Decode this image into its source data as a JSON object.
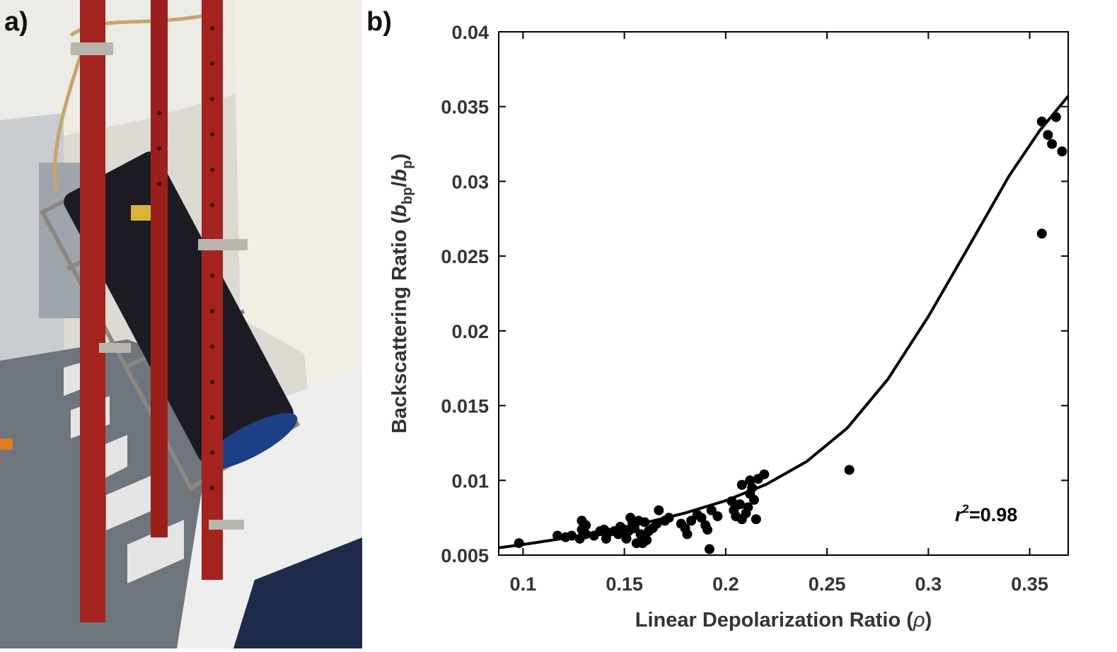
{
  "panel_labels": {
    "a": "a)",
    "b": "b)"
  },
  "photo": {
    "subject": "tilted-cylindrical-instrument-in-cage-frame",
    "colors": {
      "poles": "#a5231f",
      "instrument": "#1c1a22",
      "frame": "#8b8780",
      "deck": "#6d7278",
      "wall": "#e8e6df",
      "endcap": "#1d3f86"
    }
  },
  "chart_data": {
    "type": "scatter",
    "xlabel_main": "Linear Depolarization Ratio (",
    "xlabel_symbol": "ρ",
    "xlabel_close": ")",
    "ylabel_main": "Backscattering Ratio (",
    "ylabel_b1": "b",
    "ylabel_sub1": "bp",
    "ylabel_slash": "/",
    "ylabel_b2": "b",
    "ylabel_sub2": "p",
    "ylabel_close": ")",
    "xlim": [
      0.088,
      0.369
    ],
    "ylim": [
      0.005,
      0.04
    ],
    "xticks": [
      0.1,
      0.15,
      0.2,
      0.25,
      0.3,
      0.35
    ],
    "xtick_labels": [
      "0.1",
      "0.15",
      "0.2",
      "0.25",
      "0.3",
      "0.35"
    ],
    "yticks": [
      0.005,
      0.01,
      0.015,
      0.02,
      0.025,
      0.03,
      0.035,
      0.04
    ],
    "ytick_labels": [
      "0.005",
      "0.01",
      "0.015",
      "0.02",
      "0.025",
      "0.03",
      "0.035",
      "0.04"
    ],
    "annotation": {
      "r": "r",
      "sup": "2",
      "value": "=0.98"
    },
    "marker_color": "#000000",
    "points": [
      [
        0.098,
        0.0058
      ],
      [
        0.117,
        0.0063
      ],
      [
        0.121,
        0.0062
      ],
      [
        0.124,
        0.0063
      ],
      [
        0.128,
        0.0061
      ],
      [
        0.129,
        0.0067
      ],
      [
        0.129,
        0.0073
      ],
      [
        0.131,
        0.007
      ],
      [
        0.131,
        0.0064
      ],
      [
        0.135,
        0.0063
      ],
      [
        0.138,
        0.0066
      ],
      [
        0.14,
        0.0067
      ],
      [
        0.141,
        0.0061
      ],
      [
        0.142,
        0.0065
      ],
      [
        0.145,
        0.0066
      ],
      [
        0.147,
        0.0064
      ],
      [
        0.148,
        0.0069
      ],
      [
        0.15,
        0.0067
      ],
      [
        0.151,
        0.0061
      ],
      [
        0.152,
        0.0066
      ],
      [
        0.153,
        0.0075
      ],
      [
        0.154,
        0.0071
      ],
      [
        0.155,
        0.0068
      ],
      [
        0.156,
        0.0058
      ],
      [
        0.157,
        0.0073
      ],
      [
        0.158,
        0.0064
      ],
      [
        0.159,
        0.0058
      ],
      [
        0.16,
        0.0072
      ],
      [
        0.161,
        0.006
      ],
      [
        0.162,
        0.0066
      ],
      [
        0.164,
        0.0068
      ],
      [
        0.166,
        0.0071
      ],
      [
        0.167,
        0.008
      ],
      [
        0.17,
        0.0073
      ],
      [
        0.172,
        0.0075
      ],
      [
        0.178,
        0.0071
      ],
      [
        0.18,
        0.0068
      ],
      [
        0.181,
        0.0064
      ],
      [
        0.183,
        0.0073
      ],
      [
        0.186,
        0.0077
      ],
      [
        0.188,
        0.0075
      ],
      [
        0.19,
        0.007
      ],
      [
        0.191,
        0.0067
      ],
      [
        0.192,
        0.0054
      ],
      [
        0.193,
        0.008
      ],
      [
        0.196,
        0.0076
      ],
      [
        0.203,
        0.0086
      ],
      [
        0.204,
        0.008
      ],
      [
        0.205,
        0.0076
      ],
      [
        0.207,
        0.0084
      ],
      [
        0.208,
        0.0074
      ],
      [
        0.208,
        0.0097
      ],
      [
        0.21,
        0.0078
      ],
      [
        0.211,
        0.0082
      ],
      [
        0.212,
        0.0091
      ],
      [
        0.212,
        0.01
      ],
      [
        0.213,
        0.0095
      ],
      [
        0.214,
        0.0087
      ],
      [
        0.215,
        0.0074
      ],
      [
        0.216,
        0.0101
      ],
      [
        0.219,
        0.0104
      ],
      [
        0.261,
        0.0107
      ],
      [
        0.356,
        0.034
      ],
      [
        0.356,
        0.0265
      ],
      [
        0.359,
        0.0331
      ],
      [
        0.361,
        0.0325
      ],
      [
        0.363,
        0.0343
      ],
      [
        0.366,
        0.032
      ]
    ],
    "fit_curve": [
      [
        0.088,
        0.00549
      ],
      [
        0.1,
        0.00571
      ],
      [
        0.12,
        0.00612
      ],
      [
        0.14,
        0.00659
      ],
      [
        0.16,
        0.00715
      ],
      [
        0.18,
        0.00782
      ],
      [
        0.2,
        0.00864
      ],
      [
        0.22,
        0.00973
      ],
      [
        0.24,
        0.01126
      ],
      [
        0.26,
        0.0135
      ],
      [
        0.28,
        0.01676
      ],
      [
        0.3,
        0.02096
      ],
      [
        0.32,
        0.02565
      ],
      [
        0.34,
        0.0304
      ],
      [
        0.355,
        0.0334
      ],
      [
        0.369,
        0.0357
      ]
    ]
  }
}
